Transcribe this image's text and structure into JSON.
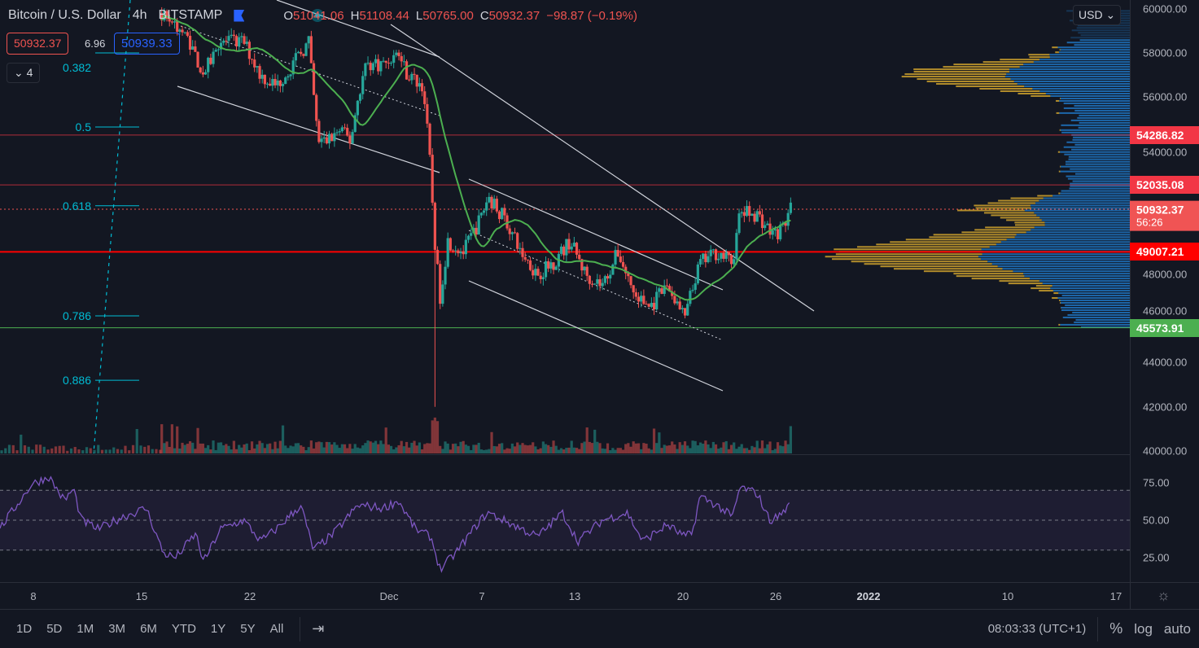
{
  "header": {
    "symbol": "Bitcoin / U.S. Dollar",
    "interval": "4h",
    "exchange": "BITSTAMP",
    "o_label": "O",
    "o": "51041.06",
    "h_label": "H",
    "h": "51108.44",
    "l_label": "L",
    "l": "50765.00",
    "c_label": "C",
    "c": "50932.37",
    "change": "−98.87 (−0.19%)"
  },
  "trade": {
    "sell": "50932.37",
    "spread": "6.96",
    "buy": "50939.33",
    "collapse_count": "4"
  },
  "currency": "USD",
  "fib_labels": [
    {
      "label": "0.382",
      "price": 58000
    },
    {
      "label": "0.5",
      "price": 54650
    },
    {
      "label": "0.618",
      "price": 51090
    },
    {
      "label": "0.786",
      "price": 46110
    },
    {
      "label": "0.886",
      "price": 43200
    }
  ],
  "colors": {
    "bg": "#131722",
    "up": "#26a69a",
    "down": "#ef5350",
    "ma": "#4caf50",
    "rsi": "#7e57c2",
    "fib": "#00bcd4"
  },
  "bottom": {
    "ranges": [
      "1D",
      "5D",
      "1M",
      "3M",
      "6M",
      "YTD",
      "1Y",
      "5Y",
      "All"
    ],
    "clock": "08:03:33 (UTC+1)",
    "percent": "%",
    "log": "log",
    "auto": "auto"
  },
  "chart_data": {
    "type": "candlestick",
    "title": "Bitcoin / U.S. Dollar, 4h, BITSTAMP",
    "x_unit": "day (Nov 1 = 1, Dec 1 = 31)",
    "ylim": [
      40000,
      60000
    ],
    "price_ticks": [
      "60000.00",
      "58000.00",
      "56000.00",
      "54000.00",
      "48000.00",
      "46000.00",
      "44000.00",
      "42000.00",
      "40000.00"
    ],
    "price_tick_values": [
      60000,
      58000,
      56000,
      54000,
      48000,
      46000,
      44000,
      42000,
      40000
    ],
    "time_ticks": [
      {
        "label": "8",
        "day": 8
      },
      {
        "label": "15",
        "day": 15
      },
      {
        "label": "22",
        "day": 22
      },
      {
        "label": "Dec",
        "day": 31
      },
      {
        "label": "7",
        "day": 37
      },
      {
        "label": "13",
        "day": 43
      },
      {
        "label": "20",
        "day": 50
      },
      {
        "label": "26",
        "day": 56
      },
      {
        "label": "2022",
        "day": 62
      },
      {
        "label": "10",
        "day": 71
      },
      {
        "label": "17",
        "day": 78
      }
    ],
    "price_levels": [
      {
        "value": "54286.82",
        "price": 54286.82,
        "color": "#f23645",
        "style": "thin"
      },
      {
        "value": "52035.08",
        "price": 52035.08,
        "color": "#f23645",
        "style": "thin"
      },
      {
        "value": "50932.37",
        "price": 50932.37,
        "color": "#ef5350",
        "style": "dotted",
        "countdown": "56:26"
      },
      {
        "value": "49007.21",
        "price": 49007.21,
        "color": "#ff0000",
        "style": "bold"
      },
      {
        "value": "45573.91",
        "price": 45573.91,
        "color": "#4caf50",
        "style": "thin"
      }
    ],
    "close_path": [
      [
        16.3,
        59800
      ],
      [
        17.2,
        59300
      ],
      [
        18.1,
        58500
      ],
      [
        19.0,
        57000
      ],
      [
        20.0,
        58500
      ],
      [
        21.6,
        58500
      ],
      [
        22.7,
        57000
      ],
      [
        23.7,
        56500
      ],
      [
        24.8,
        57500
      ],
      [
        25.8,
        58500
      ],
      [
        26.4,
        54000
      ],
      [
        26.9,
        54000
      ],
      [
        27.9,
        54500
      ],
      [
        28.5,
        54000
      ],
      [
        29.0,
        56000
      ],
      [
        29.5,
        57500
      ],
      [
        30.6,
        57500
      ],
      [
        31.6,
        58000
      ],
      [
        32.2,
        57000
      ],
      [
        33.2,
        56500
      ],
      [
        33.6,
        53500
      ],
      [
        34.0,
        49000
      ],
      [
        34.3,
        47000
      ],
      [
        34.8,
        49500
      ],
      [
        35.8,
        49000
      ],
      [
        36.9,
        50500
      ],
      [
        37.4,
        51500
      ],
      [
        38.5,
        50500
      ],
      [
        39.5,
        49000
      ],
      [
        40.6,
        48000
      ],
      [
        41.6,
        48500
      ],
      [
        42.7,
        49500
      ],
      [
        43.7,
        48000
      ],
      [
        44.8,
        47500
      ],
      [
        45.8,
        49000
      ],
      [
        46.9,
        47000
      ],
      [
        47.9,
        46500
      ],
      [
        49.0,
        47500
      ],
      [
        50.1,
        46000
      ],
      [
        51.1,
        48500
      ],
      [
        52.2,
        49000
      ],
      [
        53.2,
        48500
      ],
      [
        53.7,
        50800
      ],
      [
        54.8,
        50700
      ],
      [
        55.8,
        49800
      ],
      [
        56.4,
        50000
      ],
      [
        56.95,
        50932
      ]
    ],
    "wicks": [
      {
        "day": 34.0,
        "low": 42000
      }
    ],
    "ma_period": 20,
    "rsi": {
      "ticks": [
        "75.00",
        "50.00",
        "25.00"
      ],
      "tick_values": [
        75,
        50,
        25
      ],
      "bands": [
        70,
        50,
        30
      ],
      "path": [
        [
          5.8,
          44
        ],
        [
          7.9,
          74
        ],
        [
          9.0,
          79
        ],
        [
          10.0,
          63
        ],
        [
          10.6,
          71
        ],
        [
          11.1,
          50
        ],
        [
          12.2,
          44
        ],
        [
          13.7,
          52
        ],
        [
          15.3,
          58
        ],
        [
          16.4,
          28
        ],
        [
          17.2,
          25
        ],
        [
          18.5,
          41
        ],
        [
          19.0,
          22
        ],
        [
          20.1,
          44
        ],
        [
          21.6,
          50
        ],
        [
          22.7,
          36
        ],
        [
          23.7,
          44
        ],
        [
          25.3,
          60
        ],
        [
          26.1,
          30
        ],
        [
          27.4,
          41
        ],
        [
          29.0,
          60
        ],
        [
          30.6,
          58
        ],
        [
          31.6,
          63
        ],
        [
          32.7,
          44
        ],
        [
          33.7,
          39
        ],
        [
          34.3,
          17
        ],
        [
          35.3,
          28
        ],
        [
          36.9,
          50
        ],
        [
          37.4,
          55
        ],
        [
          39.0,
          47
        ],
        [
          40.6,
          39
        ],
        [
          42.2,
          55
        ],
        [
          43.2,
          36
        ],
        [
          44.8,
          50
        ],
        [
          46.4,
          55
        ],
        [
          47.4,
          36
        ],
        [
          49.0,
          47
        ],
        [
          50.1,
          39
        ],
        [
          50.6,
          41
        ],
        [
          51.1,
          66
        ],
        [
          52.2,
          60
        ],
        [
          53.2,
          52
        ],
        [
          53.7,
          72
        ],
        [
          54.8,
          68
        ],
        [
          55.6,
          50
        ],
        [
          56.1,
          52
        ],
        [
          56.9,
          60
        ]
      ]
    }
  }
}
